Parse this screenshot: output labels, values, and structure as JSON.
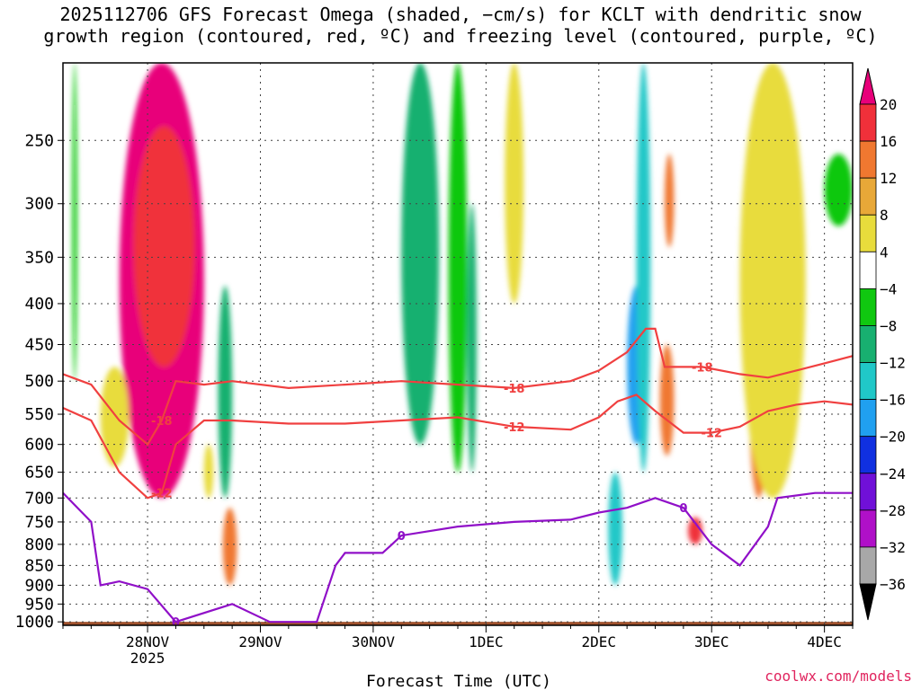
{
  "title_line1": "2025112706 GFS Forecast Omega (shaded, −cm/s) for KCLT with dendritic snow",
  "title_line2": "growth region (contoured, red, ºC) and freezing level (contoured, purple, ºC)",
  "credit": "coolwx.com/models",
  "chart_data": {
    "type": "heatmap",
    "title": "2025112706 GFS Forecast Omega (shaded, −cm/s) for KCLT with dendritic snow growth region (contoured, red, ºC) and freezing level (contoured, purple, ºC)",
    "xlabel": "Forecast Time (UTC)",
    "ylabel": "",
    "x_range_hours": [
      0,
      168
    ],
    "x_ticks": [
      {
        "hour": 18,
        "label": "28NOV",
        "sublabel": "2025"
      },
      {
        "hour": 42,
        "label": "29NOV"
      },
      {
        "hour": 66,
        "label": "30NOV"
      },
      {
        "hour": 90,
        "label": "1DEC"
      },
      {
        "hour": 114,
        "label": "2DEC"
      },
      {
        "hour": 138,
        "label": "3DEC"
      },
      {
        "hour": 162,
        "label": "4DEC"
      }
    ],
    "y_scale": "log-pressure",
    "y_range_hpa": [
      1010,
      200
    ],
    "y_ticks": [
      "250",
      "300",
      "350",
      "400",
      "450",
      "500",
      "550",
      "600",
      "650",
      "700",
      "750",
      "800",
      "850",
      "900",
      "950",
      "1000"
    ],
    "colorbar": {
      "labels": [
        "20",
        "16",
        "12",
        "8",
        "4",
        "−4",
        "−8",
        "−12",
        "−16",
        "−20",
        "−24",
        "−28",
        "−32",
        "−36"
      ],
      "bins": [
        {
          "range": [
            20,
            99
          ],
          "color": "#e8007a"
        },
        {
          "range": [
            16,
            20
          ],
          "color": "#f0303a"
        },
        {
          "range": [
            12,
            16
          ],
          "color": "#f07830"
        },
        {
          "range": [
            8,
            12
          ],
          "color": "#e8a838"
        },
        {
          "range": [
            4,
            8
          ],
          "color": "#e8dc3c"
        },
        {
          "range": [
            -4,
            4
          ],
          "color": "#ffffff"
        },
        {
          "range": [
            -8,
            -4
          ],
          "color": "#10c810"
        },
        {
          "range": [
            -12,
            -8
          ],
          "color": "#18b070"
        },
        {
          "range": [
            -16,
            -12
          ],
          "color": "#20c8c8"
        },
        {
          "range": [
            -20,
            -16
          ],
          "color": "#20a0f0"
        },
        {
          "range": [
            -24,
            -20
          ],
          "color": "#1030e0"
        },
        {
          "range": [
            -28,
            -24
          ],
          "color": "#7010d8"
        },
        {
          "range": [
            -32,
            -28
          ],
          "color": "#b010c8"
        },
        {
          "range": [
            -36,
            -32
          ],
          "color": "#a8a8a8"
        },
        {
          "range": [
            -99,
            -36
          ],
          "color": "#000000"
        }
      ]
    },
    "omega_features": [
      {
        "t": [
          12,
          30
        ],
        "p": [
          200,
          700
        ],
        "value": 20
      },
      {
        "t": [
          15,
          28
        ],
        "p": [
          240,
          480
        ],
        "value": 16
      },
      {
        "t": [
          8,
          14
        ],
        "p": [
          480,
          640
        ],
        "value": 6
      },
      {
        "t": [
          33,
          36
        ],
        "p": [
          380,
          700
        ],
        "value": -12
      },
      {
        "t": [
          34,
          37
        ],
        "p": [
          720,
          900
        ],
        "value": 12
      },
      {
        "t": [
          30,
          32
        ],
        "p": [
          600,
          700
        ],
        "value": 6
      },
      {
        "t": [
          2,
          3
        ],
        "p": [
          200,
          500
        ],
        "value": -6
      },
      {
        "t": [
          72,
          80
        ],
        "p": [
          200,
          600
        ],
        "value": -10
      },
      {
        "t": [
          82,
          86
        ],
        "p": [
          200,
          650
        ],
        "value": -6
      },
      {
        "t": [
          86,
          88
        ],
        "p": [
          300,
          650
        ],
        "value": -12
      },
      {
        "t": [
          94,
          98
        ],
        "p": [
          200,
          400
        ],
        "value": 6
      },
      {
        "t": [
          120,
          124
        ],
        "p": [
          380,
          600
        ],
        "value": -20
      },
      {
        "t": [
          122,
          125
        ],
        "p": [
          200,
          650
        ],
        "value": -14
      },
      {
        "t": [
          116,
          119
        ],
        "p": [
          650,
          900
        ],
        "value": -16
      },
      {
        "t": [
          127,
          130
        ],
        "p": [
          450,
          620
        ],
        "value": 12
      },
      {
        "t": [
          128,
          130
        ],
        "p": [
          260,
          340
        ],
        "value": 12
      },
      {
        "t": [
          133,
          136
        ],
        "p": [
          740,
          800
        ],
        "value": 16
      },
      {
        "t": [
          146,
          150
        ],
        "p": [
          400,
          700
        ],
        "value": 14
      },
      {
        "t": [
          144,
          158
        ],
        "p": [
          200,
          700
        ],
        "value": 6
      },
      {
        "t": [
          162,
          168
        ],
        "p": [
          260,
          320
        ],
        "value": -6
      }
    ],
    "contours": [
      {
        "name": "-18",
        "color": "#f04040",
        "label": "-18",
        "points": [
          [
            0,
            490
          ],
          [
            6,
            505
          ],
          [
            12,
            560
          ],
          [
            18,
            600
          ],
          [
            21,
            560
          ],
          [
            24,
            500
          ],
          [
            30,
            505
          ],
          [
            36,
            500
          ],
          [
            48,
            510
          ],
          [
            60,
            505
          ],
          [
            72,
            500
          ],
          [
            84,
            505
          ],
          [
            96,
            510
          ],
          [
            108,
            500
          ],
          [
            114,
            485
          ],
          [
            120,
            460
          ],
          [
            124,
            430
          ],
          [
            126,
            430
          ],
          [
            128,
            480
          ],
          [
            136,
            480
          ],
          [
            144,
            490
          ],
          [
            150,
            495
          ],
          [
            156,
            485
          ],
          [
            162,
            475
          ],
          [
            168,
            465
          ]
        ]
      },
      {
        "name": "-12",
        "color": "#f04040",
        "label": "-12",
        "points": [
          [
            0,
            540
          ],
          [
            6,
            560
          ],
          [
            12,
            650
          ],
          [
            18,
            700
          ],
          [
            21,
            690
          ],
          [
            24,
            600
          ],
          [
            30,
            560
          ],
          [
            36,
            560
          ],
          [
            48,
            565
          ],
          [
            60,
            565
          ],
          [
            72,
            560
          ],
          [
            84,
            555
          ],
          [
            96,
            570
          ],
          [
            108,
            575
          ],
          [
            114,
            555
          ],
          [
            118,
            530
          ],
          [
            122,
            520
          ],
          [
            126,
            545
          ],
          [
            132,
            580
          ],
          [
            138,
            580
          ],
          [
            144,
            570
          ],
          [
            150,
            545
          ],
          [
            156,
            535
          ],
          [
            162,
            530
          ],
          [
            168,
            535
          ]
        ]
      },
      {
        "name": "0",
        "color": "#9010c8",
        "label": "0",
        "points": [
          [
            0,
            690
          ],
          [
            6,
            750
          ],
          [
            8,
            900
          ],
          [
            12,
            890
          ],
          [
            18,
            910
          ],
          [
            24,
            1000
          ],
          [
            36,
            950
          ],
          [
            44,
            1000
          ],
          [
            54,
            1000
          ],
          [
            58,
            850
          ],
          [
            60,
            820
          ],
          [
            68,
            820
          ],
          [
            70,
            800
          ],
          [
            72,
            780
          ],
          [
            84,
            760
          ],
          [
            96,
            750
          ],
          [
            108,
            745
          ],
          [
            114,
            730
          ],
          [
            120,
            720
          ],
          [
            126,
            700
          ],
          [
            132,
            720
          ],
          [
            138,
            800
          ],
          [
            144,
            850
          ],
          [
            150,
            760
          ],
          [
            152,
            700
          ],
          [
            160,
            690
          ],
          [
            168,
            690
          ]
        ]
      }
    ],
    "terrain": {
      "color": "#a0522d",
      "surface_hpa": 1000
    }
  }
}
